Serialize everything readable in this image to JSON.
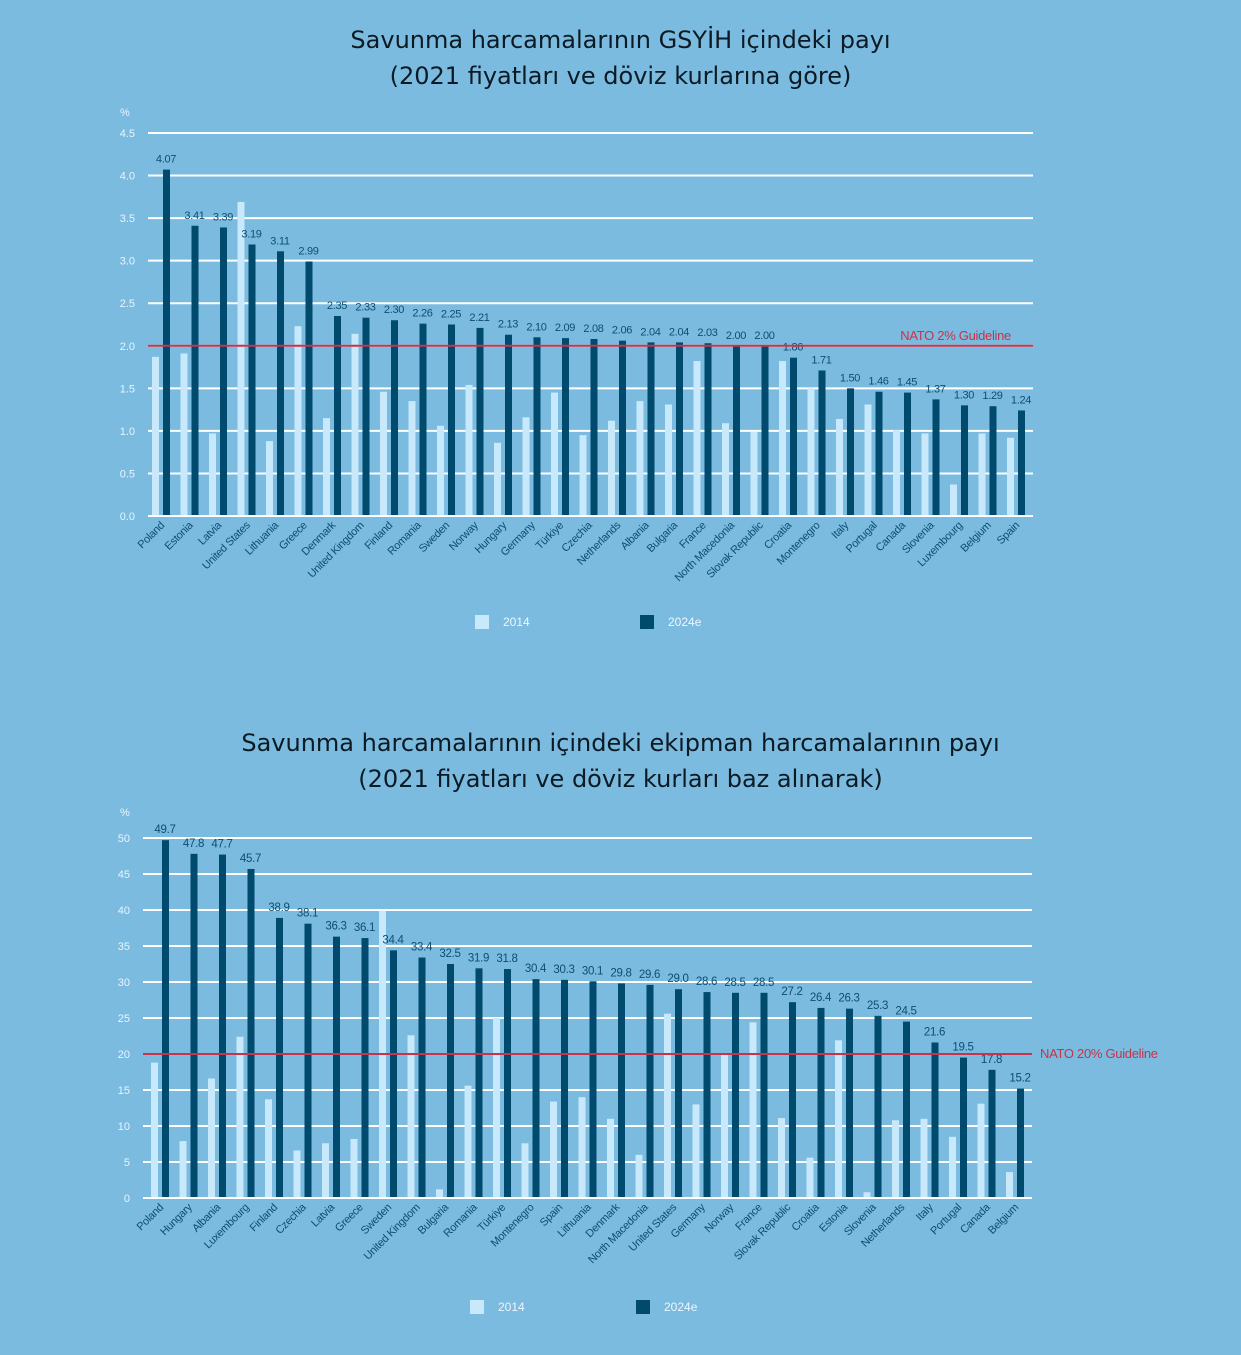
{
  "colors": {
    "background": "#7abbdf",
    "series_2014": "#c8e8fb",
    "series_2024e": "#004a6e",
    "gridline": "#ffffff",
    "guideline": "#c8334a",
    "label_text": "#0d4e72",
    "axis_text": "#eaf5fd"
  },
  "chart_data": [
    {
      "type": "bar",
      "title": "Savunma harcamalarının GSYİH içindeki payı",
      "subtitle": "(2021 fiyatları ve döviz kurlarına göre)",
      "xlabel": "",
      "ylabel": "%",
      "ylim": [
        0,
        4.5
      ],
      "yticks": [
        "0.0",
        "0.5",
        "1.0",
        "1.5",
        "2.0",
        "2.5",
        "3.0",
        "3.5",
        "4.0",
        "4.5"
      ],
      "ytick_values": [
        0,
        0.5,
        1.0,
        1.5,
        2.0,
        2.5,
        3.0,
        3.5,
        4.0,
        4.5
      ],
      "grid": true,
      "legend_position": "bottom-center",
      "guideline": {
        "value": 2.0,
        "label": "NATO 2% Guideline"
      },
      "categories": [
        "Poland",
        "Estonia",
        "Latvia",
        "United States",
        "Lithuania",
        "Greece",
        "Denmark",
        "United Kingdom",
        "Finland",
        "Romania",
        "Sweden",
        "Norway",
        "Hungary",
        "Germany",
        "Türkiye",
        "Czechia",
        "Netherlands",
        "Albania",
        "Bulgaria",
        "France",
        "North Macedonia",
        "Slovak Republic",
        "Croatia",
        "Montenegro",
        "Italy",
        "Portugal",
        "Canada",
        "Slovenia",
        "Luxembourg",
        "Belgium",
        "Spain"
      ],
      "series": [
        {
          "name": "2014",
          "values": [
            1.87,
            1.91,
            0.97,
            3.69,
            0.88,
            2.23,
            1.15,
            2.14,
            1.46,
            1.35,
            1.06,
            1.54,
            0.86,
            1.16,
            1.45,
            0.95,
            1.12,
            1.35,
            1.31,
            1.82,
            1.09,
            0.99,
            1.82,
            1.5,
            1.14,
            1.31,
            1.01,
            0.97,
            0.37,
            0.97,
            0.92
          ]
        },
        {
          "name": "2024e",
          "values": [
            4.07,
            3.41,
            3.39,
            3.19,
            3.11,
            2.99,
            2.35,
            2.33,
            2.3,
            2.26,
            2.25,
            2.21,
            2.13,
            2.1,
            2.09,
            2.08,
            2.06,
            2.04,
            2.04,
            2.03,
            2.0,
            2.0,
            1.86,
            1.71,
            1.5,
            1.46,
            1.45,
            1.37,
            1.3,
            1.29,
            1.24
          ],
          "labels": [
            "4.07",
            "3.41",
            "3.39",
            "3.19",
            "3.11",
            "2.99",
            "2.35",
            "2.33",
            "2.30",
            "2.26",
            "2.25",
            "2.21",
            "2.13",
            "2.10",
            "2.09",
            "2.08",
            "2.06",
            "2.04",
            "2.04",
            "2.03",
            "2.00",
            "2.00",
            "1.86",
            "1.71",
            "1.50",
            "1.46",
            "1.45",
            "1.37",
            "1.30",
            "1.29",
            "1.24"
          ]
        }
      ]
    },
    {
      "type": "bar",
      "title": "Savunma harcamalarının içindeki ekipman harcamalarının payı",
      "subtitle": "(2021 fiyatları ve döviz kurları baz alınarak)",
      "xlabel": "",
      "ylabel": "%",
      "ylim": [
        0,
        50
      ],
      "yticks": [
        "0",
        "5",
        "10",
        "15",
        "20",
        "25",
        "30",
        "35",
        "40",
        "45",
        "50"
      ],
      "ytick_values": [
        0,
        5,
        10,
        15,
        20,
        25,
        30,
        35,
        40,
        45,
        50
      ],
      "grid": true,
      "legend_position": "bottom-center",
      "guideline": {
        "value": 20,
        "label": "NATO 20% Guideline"
      },
      "categories": [
        "Poland",
        "Hungary",
        "Albania",
        "Luxembourg",
        "Finland",
        "Czechia",
        "Latvia",
        "Greece",
        "Sweden",
        "United Kingdom",
        "Bulgaria",
        "Romania",
        "Türkiye",
        "Montenegro",
        "Spain",
        "Lithuania",
        "Denmark",
        "North Macedonia",
        "United States",
        "Germany",
        "Norway",
        "France",
        "Slovak Republic",
        "Croatia",
        "Estonia",
        "Slovenia",
        "Netherlands",
        "Italy",
        "Portugal",
        "Canada",
        "Belgium"
      ],
      "series": [
        {
          "name": "2014",
          "values": [
            18.8,
            7.9,
            16.6,
            22.4,
            13.7,
            6.6,
            7.6,
            8.2,
            39.9,
            22.6,
            1.2,
            15.6,
            25.0,
            7.6,
            13.4,
            14.0,
            11.0,
            6.0,
            25.6,
            13.0,
            20.1,
            24.4,
            11.1,
            5.6,
            21.9,
            0.8,
            10.8,
            11.0,
            8.5,
            13.1,
            3.6
          ]
        },
        {
          "name": "2024e",
          "values": [
            49.7,
            47.8,
            47.7,
            45.7,
            38.9,
            38.1,
            36.3,
            36.1,
            34.4,
            33.4,
            32.5,
            31.9,
            31.8,
            30.4,
            30.3,
            30.1,
            29.8,
            29.6,
            29.0,
            28.6,
            28.5,
            28.5,
            27.2,
            26.4,
            26.3,
            25.3,
            24.5,
            21.6,
            19.5,
            17.8,
            15.2
          ],
          "labels": [
            "49.7",
            "47.8",
            "47.7",
            "45.7",
            "38.9",
            "38.1",
            "36.3",
            "36.1",
            "34.4",
            "33.4",
            "32.5",
            "31.9",
            "31.8",
            "30.4",
            "30.3",
            "30.1",
            "29.8",
            "29.6",
            "29.0",
            "28.6",
            "28.5",
            "28.5",
            "27.2",
            "26.4",
            "26.3",
            "25.3",
            "24.5",
            "21.6",
            "19.5",
            "17.8",
            "15.2"
          ]
        }
      ]
    }
  ],
  "legend": {
    "items": [
      {
        "label": "2014"
      },
      {
        "label": "2024e"
      }
    ]
  }
}
